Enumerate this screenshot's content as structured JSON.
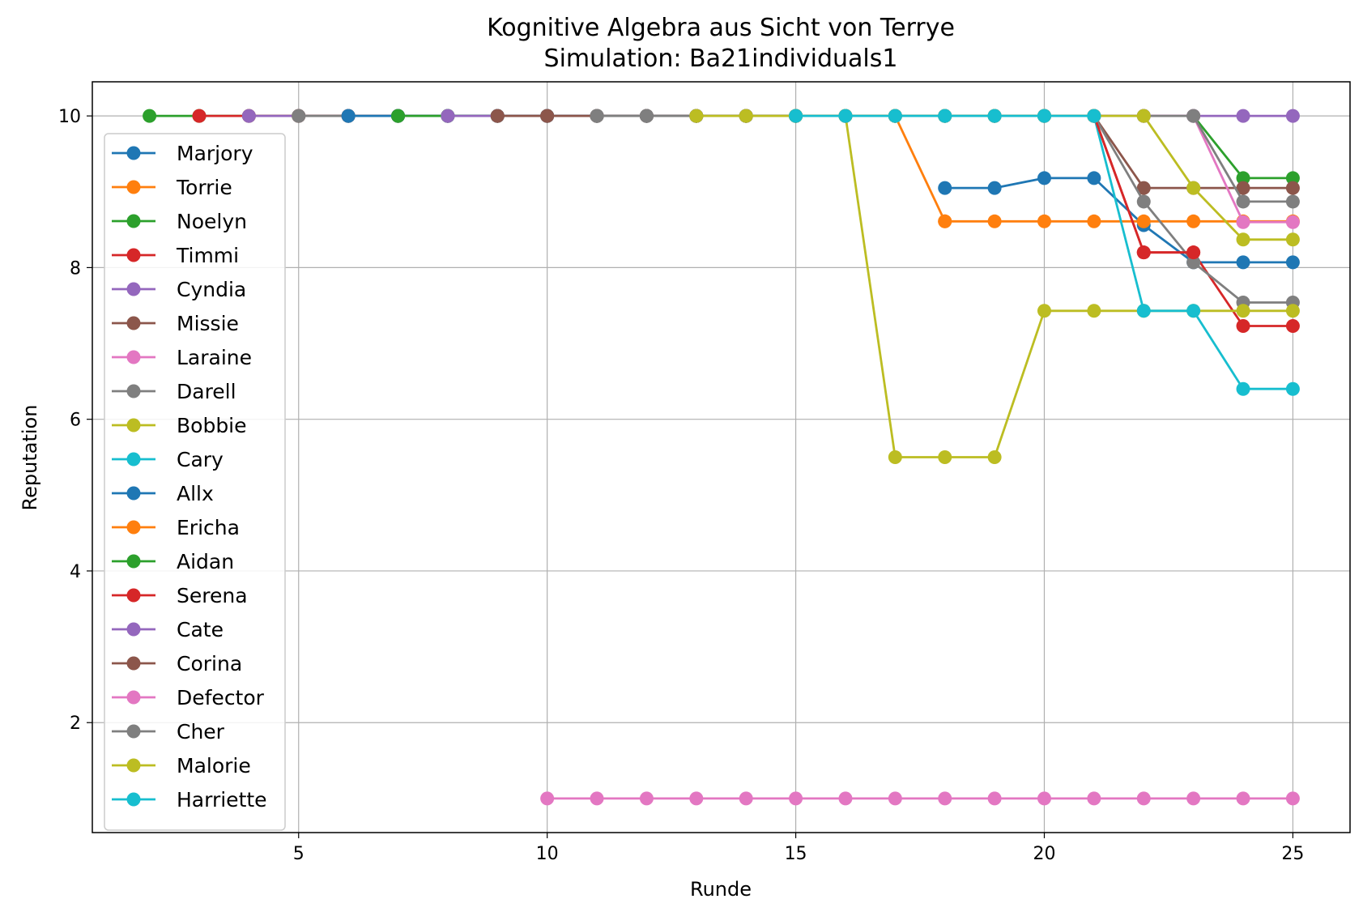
{
  "chart_data": {
    "type": "line",
    "title": "Kognitive Algebra aus Sicht von Terrye",
    "subtitle": "Simulation: Ba21individuals1",
    "xlabel": "Runde",
    "ylabel": "Reputation",
    "xlim": [
      0.85,
      26.15
    ],
    "ylim": [
      0.55,
      10.45
    ],
    "xticks": [
      5,
      10,
      15,
      20,
      25
    ],
    "yticks": [
      2,
      4,
      6,
      8,
      10
    ],
    "grid": true,
    "legend_position": "left",
    "series": [
      {
        "name": "Marjory",
        "color": "#1f77b4",
        "x": [
          18,
          19,
          20,
          21,
          22,
          23,
          24,
          25
        ],
        "y": [
          9.05,
          9.05,
          9.18,
          9.18,
          8.56,
          8.07,
          8.07,
          8.07
        ]
      },
      {
        "name": "Torrie",
        "color": "#ff7f0e",
        "x": [
          18,
          19,
          20,
          21,
          22,
          23,
          24,
          25
        ],
        "y": [
          8.61,
          8.61,
          8.61,
          8.61,
          8.61,
          8.61,
          8.61,
          8.61
        ]
      },
      {
        "name": "Noelyn",
        "color": "#2ca02c",
        "x": [
          2,
          3,
          4,
          5,
          6,
          7,
          8,
          9,
          10,
          11,
          12,
          13,
          14,
          15,
          16,
          17,
          18,
          19,
          20,
          21,
          22,
          23,
          24,
          25
        ],
        "y": [
          10,
          10,
          10,
          10,
          10,
          10,
          10,
          10,
          10,
          10,
          10,
          10,
          10,
          10,
          10,
          10,
          10,
          10,
          10,
          10,
          10,
          10,
          9.18,
          9.18
        ]
      },
      {
        "name": "Timmi",
        "color": "#d62728",
        "x": [
          3,
          4,
          5,
          6,
          7,
          8,
          9,
          10,
          11,
          12,
          13,
          14,
          15,
          16,
          17,
          18,
          19,
          20,
          21,
          22,
          23,
          24,
          25
        ],
        "y": [
          10,
          10,
          10,
          10,
          10,
          10,
          10,
          10,
          10,
          10,
          10,
          10,
          10,
          10,
          10,
          10,
          10,
          10,
          10,
          8.2,
          8.2,
          7.23,
          7.23
        ]
      },
      {
        "name": "Cyndia",
        "color": "#9467bd",
        "x": [
          4,
          5,
          6,
          7,
          8,
          9,
          10,
          11,
          12,
          13,
          14,
          15,
          16,
          17,
          18,
          19,
          20,
          21,
          22,
          23,
          24,
          25
        ],
        "y": [
          10,
          10,
          10,
          10,
          10,
          10,
          10,
          10,
          10,
          10,
          10,
          10,
          10,
          10,
          10,
          10,
          10,
          10,
          10,
          10,
          10,
          10
        ]
      },
      {
        "name": "Missie",
        "color": "#8c564b",
        "x": [
          5,
          6,
          7,
          8,
          9,
          10,
          11,
          12,
          13,
          14,
          15,
          16,
          17,
          18,
          19,
          20,
          21,
          22,
          23,
          24,
          25
        ],
        "y": [
          10,
          10,
          10,
          10,
          10,
          10,
          10,
          10,
          10,
          10,
          10,
          10,
          10,
          10,
          10,
          10,
          10,
          9.05,
          9.05,
          9.05,
          9.05
        ]
      },
      {
        "name": "Laraine",
        "color": "#e377c2",
        "x": [
          16,
          17,
          18,
          19,
          20,
          21,
          22,
          23,
          24,
          25
        ],
        "y": [
          10,
          10,
          10,
          10,
          10,
          10,
          10,
          10,
          8.6,
          8.6
        ]
      },
      {
        "name": "Darell",
        "color": "#7f7f7f",
        "x": [
          5,
          6,
          7,
          8,
          9,
          10,
          11,
          12,
          13,
          14,
          15,
          16,
          17,
          18,
          19,
          20,
          21,
          22,
          23,
          24,
          25
        ],
        "y": [
          10,
          10,
          10,
          10,
          10,
          10,
          10,
          10,
          10,
          10,
          10,
          10,
          10,
          10,
          10,
          10,
          10,
          8.87,
          8.07,
          7.54,
          7.54
        ]
      },
      {
        "name": "Bobbie",
        "color": "#bcbd22",
        "x": [
          13,
          14,
          15,
          16,
          17,
          18,
          19,
          20,
          21,
          22,
          23,
          24,
          25
        ],
        "y": [
          10,
          10,
          10,
          10,
          5.5,
          5.5,
          5.5,
          7.43,
          7.43,
          7.43,
          7.43,
          7.43,
          7.43
        ]
      },
      {
        "name": "Cary",
        "color": "#17becf",
        "x": [
          17,
          18,
          19,
          20,
          21,
          22,
          23,
          24,
          25
        ],
        "y": [
          10,
          10,
          10,
          10,
          10,
          7.43,
          7.43,
          6.4,
          6.4
        ]
      },
      {
        "name": "Allx",
        "color": "#1f77b4",
        "x": [
          6,
          7,
          8,
          9,
          10,
          11,
          12,
          13,
          14,
          15,
          16,
          17
        ],
        "y": [
          10,
          10,
          10,
          10,
          10,
          10,
          10,
          10,
          10,
          10,
          10,
          10
        ]
      },
      {
        "name": "Ericha",
        "color": "#ff7f0e",
        "x": [
          15,
          16,
          17,
          18
        ],
        "y": [
          10,
          10,
          10,
          8.61
        ]
      },
      {
        "name": "Aidan",
        "color": "#2ca02c",
        "x": [
          7,
          8,
          9,
          10,
          11,
          12,
          13,
          14,
          15
        ],
        "y": [
          10,
          10,
          10,
          10,
          10,
          10,
          10,
          10,
          10
        ]
      },
      {
        "name": "Serena",
        "color": "#d62728",
        "x": [
          21,
          22,
          23
        ],
        "y": [
          10,
          8.2,
          8.2
        ]
      },
      {
        "name": "Cate",
        "color": "#9467bd",
        "x": [
          8,
          9,
          10,
          11,
          12,
          13,
          14
        ],
        "y": [
          10,
          10,
          10,
          10,
          10,
          10,
          10
        ]
      },
      {
        "name": "Corina",
        "color": "#8c564b",
        "x": [
          9,
          10,
          11,
          12,
          13,
          14,
          15
        ],
        "y": [
          10,
          10,
          10,
          10,
          10,
          10,
          10
        ]
      },
      {
        "name": "Defector",
        "color": "#e377c2",
        "x": [
          10,
          11,
          12,
          13,
          14,
          15,
          16,
          17,
          18,
          19,
          20,
          21,
          22,
          23,
          24,
          25
        ],
        "y": [
          1,
          1,
          1,
          1,
          1,
          1,
          1,
          1,
          1,
          1,
          1,
          1,
          1,
          1,
          1,
          1
        ]
      },
      {
        "name": "Cher",
        "color": "#7f7f7f",
        "x": [
          11,
          12,
          13,
          14,
          15,
          16,
          17,
          18,
          19,
          20,
          21,
          22,
          23,
          24,
          25
        ],
        "y": [
          10,
          10,
          10,
          10,
          10,
          10,
          10,
          10,
          10,
          10,
          10,
          10,
          10,
          8.87,
          8.87
        ]
      },
      {
        "name": "Malorie",
        "color": "#bcbd22",
        "x": [
          13,
          14,
          15,
          16,
          17,
          18,
          19,
          20,
          21,
          22,
          23,
          24,
          25
        ],
        "y": [
          10,
          10,
          10,
          10,
          10,
          10,
          10,
          10,
          10,
          10,
          9.05,
          8.37,
          8.37
        ]
      },
      {
        "name": "Harriette",
        "color": "#17becf",
        "x": [
          15,
          16,
          17,
          18,
          19,
          20,
          21
        ],
        "y": [
          10,
          10,
          10,
          10,
          10,
          10,
          10
        ]
      }
    ]
  }
}
